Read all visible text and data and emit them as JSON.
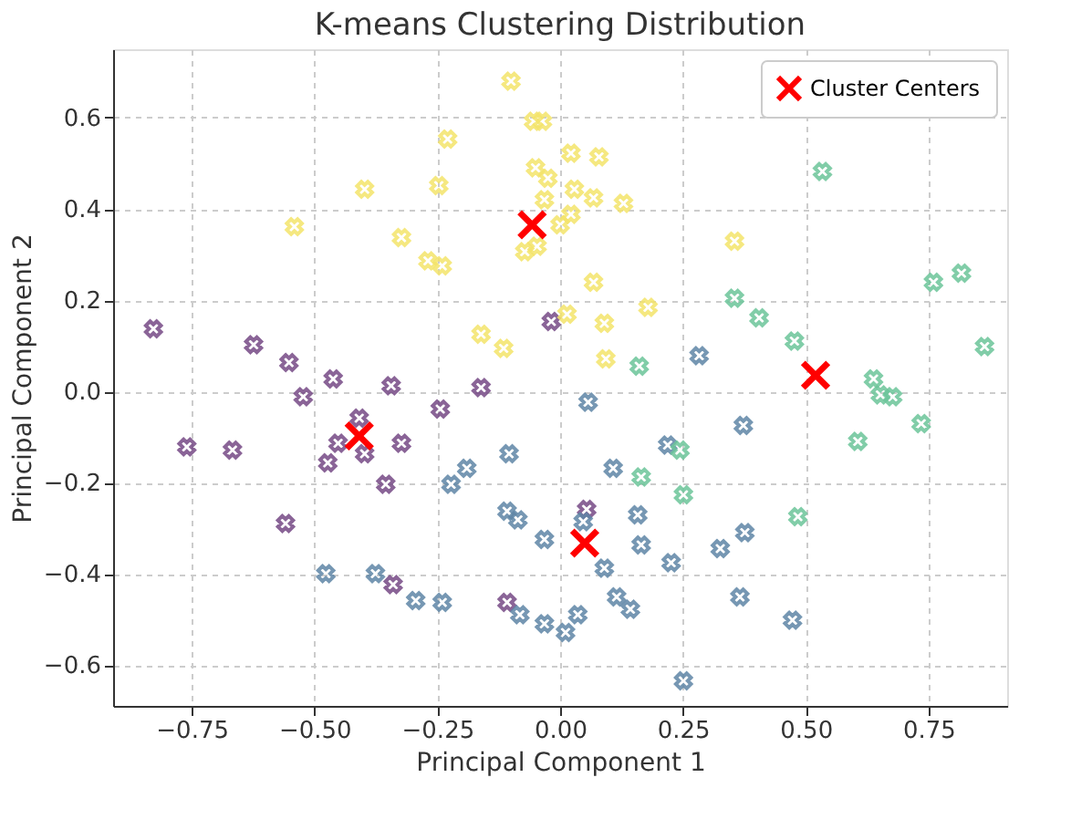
{
  "chart_data": {
    "type": "scatter",
    "title": "K-means Clustering Distribution",
    "xlabel": "Principal Component 1",
    "ylabel": "Principal Component 2",
    "xlim": [
      -0.91,
      0.91
    ],
    "ylim": [
      -0.69,
      0.75
    ],
    "xticks": [
      {
        "value": -0.75,
        "label": "−0.75"
      },
      {
        "value": -0.5,
        "label": "−0.50"
      },
      {
        "value": -0.25,
        "label": "−0.25"
      },
      {
        "value": 0,
        "label": "0.00"
      },
      {
        "value": 0.25,
        "label": "0.25"
      },
      {
        "value": 0.5,
        "label": "0.50"
      },
      {
        "value": 0.75,
        "label": "0.75"
      }
    ],
    "yticks": [
      {
        "value": -0.6,
        "label": "−0.6"
      },
      {
        "value": -0.4,
        "label": "−0.4"
      },
      {
        "value": -0.2,
        "label": "−0.2"
      },
      {
        "value": 0,
        "label": "0.0"
      },
      {
        "value": 0.2,
        "label": "0.2"
      },
      {
        "value": 0.4,
        "label": "0.4"
      },
      {
        "value": 0.6,
        "label": "0.6"
      }
    ],
    "grid": true,
    "legend": "top right",
    "marker": "cross",
    "series": [
      {
        "color": "#764a86",
        "x": [
          -0.828,
          -0.624,
          -0.552,
          -0.523,
          -0.462,
          -0.344,
          -0.161,
          -0.244,
          -0.018,
          -0.409,
          -0.452,
          -0.323,
          -0.473,
          -0.398,
          -0.76,
          -0.667,
          -0.355,
          -0.559,
          -0.34,
          -0.108,
          0.054
        ],
        "values": [
          0.137,
          0.102,
          0.063,
          -0.012,
          0.027,
          0.012,
          0.008,
          -0.039,
          0.153,
          -0.059,
          -0.114,
          -0.114,
          -0.157,
          -0.137,
          -0.122,
          -0.129,
          -0.204,
          -0.29,
          -0.424,
          -0.463,
          -0.259
        ]
      },
      {
        "color": "#5f86a6",
        "x": [
          -0.104,
          -0.19,
          -0.222,
          -0.108,
          -0.086,
          -0.032,
          -0.477,
          -0.376,
          -0.294,
          -0.24,
          -0.082,
          -0.032,
          0.011,
          0.057,
          0.373,
          0.219,
          0.108,
          0.047,
          0.158,
          0.165,
          0.09,
          0.226,
          0.326,
          0.376,
          0.115,
          0.143,
          0.036,
          0.366,
          0.473,
          0.251,
          0.283
        ],
        "values": [
          -0.137,
          -0.169,
          -0.204,
          -0.263,
          -0.282,
          -0.325,
          -0.4,
          -0.4,
          -0.459,
          -0.463,
          -0.49,
          -0.51,
          -0.529,
          -0.024,
          -0.075,
          -0.118,
          -0.169,
          -0.286,
          -0.271,
          -0.337,
          -0.388,
          -0.376,
          -0.345,
          -0.31,
          -0.451,
          -0.478,
          -0.49,
          -0.451,
          -0.502,
          -0.635,
          0.078
        ]
      },
      {
        "color": "#6cc59a",
        "x": [
          0.534,
          0.76,
          0.817,
          0.355,
          0.405,
          0.477,
          0.864,
          0.161,
          0.638,
          0.652,
          0.677,
          0.244,
          0.165,
          0.251,
          0.484,
          0.606,
          0.735
        ],
        "values": [
          0.482,
          0.239,
          0.259,
          0.204,
          0.161,
          0.11,
          0.098,
          0.055,
          0.027,
          -0.008,
          -0.012,
          -0.129,
          -0.188,
          -0.227,
          -0.275,
          -0.11,
          -0.071
        ]
      },
      {
        "color": "#f4e46a",
        "x": [
          -0.1,
          -0.054,
          -0.036,
          -0.229,
          -0.05,
          -0.025,
          -0.398,
          -0.247,
          -0.032,
          -0.541,
          -0.323,
          0.0,
          -0.269,
          -0.24,
          -0.072,
          -0.047,
          -0.161,
          -0.115,
          0.014,
          0.022,
          0.079,
          0.029,
          0.068,
          0.129,
          0.022,
          0.355,
          0.068,
          0.09,
          0.179,
          0.093
        ],
        "values": [
          0.68,
          0.592,
          0.592,
          0.553,
          0.49,
          0.467,
          0.443,
          0.451,
          0.42,
          0.361,
          0.337,
          0.365,
          0.286,
          0.275,
          0.306,
          0.318,
          0.125,
          0.094,
          0.169,
          0.522,
          0.514,
          0.443,
          0.424,
          0.412,
          0.388,
          0.329,
          0.239,
          0.149,
          0.184,
          0.071
        ]
      },
      {
        "name": "Cluster Centers",
        "color": "#ff0000",
        "x": [
          -0.409,
          -0.057,
          0.52,
          0.05
        ],
        "values": [
          -0.098,
          0.365,
          0.035,
          -0.333
        ]
      }
    ]
  }
}
